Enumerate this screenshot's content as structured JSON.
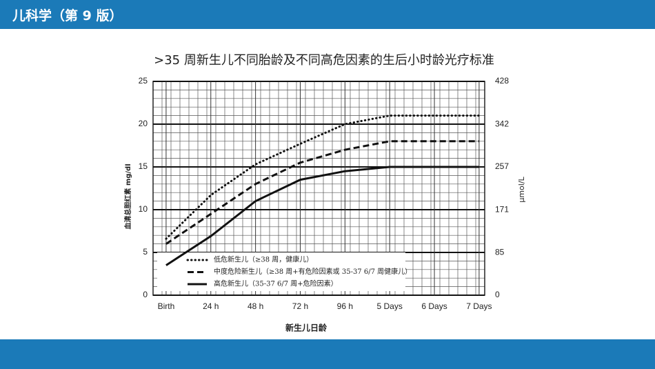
{
  "header": {
    "title": "儿科学（第 9 版）"
  },
  "chart_data": {
    "type": "line",
    "title": ">35 周新生儿不同胎龄及不同高危因素的生后小时龄光疗标准",
    "y_label": "血清总胆红素 mg/dl",
    "y2_label": "μmol/L",
    "x_label": "新生儿日龄",
    "x": [
      0,
      24,
      48,
      72,
      96,
      120,
      144,
      168
    ],
    "xlim": [
      -7,
      171
    ],
    "xticks": [
      {
        "value": 0,
        "label": "Birth"
      },
      {
        "value": 24,
        "label": "24 h"
      },
      {
        "value": 48,
        "label": "48 h"
      },
      {
        "value": 72,
        "label": "72 h"
      },
      {
        "value": 96,
        "label": "96 h"
      },
      {
        "value": 120,
        "label": "5 Days"
      },
      {
        "value": 144,
        "label": "6 Days"
      },
      {
        "value": 168,
        "label": "7 Days"
      }
    ],
    "ylim": [
      0,
      25
    ],
    "yticks": [
      0,
      5,
      10,
      15,
      20,
      25
    ],
    "y2lim": [
      0,
      428
    ],
    "y2ticks": [
      0,
      85,
      171,
      257,
      342,
      428
    ],
    "grid": true,
    "legend": "bottom-left",
    "series": [
      {
        "name": "低危新生儿（≥38 周，健康儿）",
        "color": "#111111",
        "style": "dotted",
        "values": [
          6.6,
          11.7,
          15.3,
          17.7,
          20,
          21,
          21,
          21
        ]
      },
      {
        "name": "中度危险新生儿（≥38 周+有危险因素或 35-37 6/7 周健康儿）",
        "color": "#111111",
        "style": "dashed",
        "values": [
          6,
          9.5,
          13,
          15.5,
          17,
          18,
          18,
          18
        ]
      },
      {
        "name": "高危新生儿（35-37 6/7 周+危险因素）",
        "color": "#111111",
        "style": "solid",
        "values": [
          3.5,
          6.9,
          11,
          13.5,
          14.5,
          15,
          15,
          15
        ]
      }
    ]
  }
}
